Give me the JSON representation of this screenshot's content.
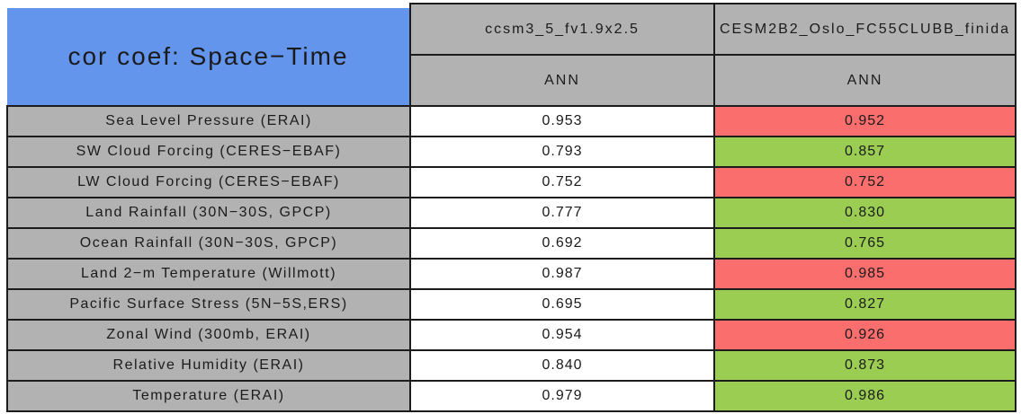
{
  "colors": {
    "header_blue": "#6495ED",
    "header_gray": "#B2B2B2",
    "cell_red": "#FB6E6E",
    "cell_green": "#9ACD52",
    "cell_white": "#FFFFFF",
    "border": "#1C1C1C"
  },
  "chart_data": {
    "type": "table",
    "title": "cor coef: Space−Time",
    "columns": [
      {
        "model": "ccsm3_5_fv1.9x2.5",
        "season": "ANN"
      },
      {
        "model": "CESM2B2_Oslo_FC55CLUBB_finida",
        "season": "ANN"
      }
    ],
    "rows": [
      {
        "label": "Sea Level Pressure (ERAI)",
        "values": [
          "0.953",
          "0.952"
        ],
        "value_colors": [
          "white",
          "red"
        ]
      },
      {
        "label": "SW Cloud Forcing (CERES−EBAF)",
        "values": [
          "0.793",
          "0.857"
        ],
        "value_colors": [
          "white",
          "green"
        ]
      },
      {
        "label": "LW Cloud Forcing (CERES−EBAF)",
        "values": [
          "0.752",
          "0.752"
        ],
        "value_colors": [
          "white",
          "red"
        ]
      },
      {
        "label": "Land Rainfall (30N−30S, GPCP)",
        "values": [
          "0.777",
          "0.830"
        ],
        "value_colors": [
          "white",
          "green"
        ]
      },
      {
        "label": "Ocean Rainfall (30N−30S, GPCP)",
        "values": [
          "0.692",
          "0.765"
        ],
        "value_colors": [
          "white",
          "green"
        ]
      },
      {
        "label": "Land 2−m Temperature (Willmott)",
        "values": [
          "0.987",
          "0.985"
        ],
        "value_colors": [
          "white",
          "red"
        ]
      },
      {
        "label": "Pacific Surface Stress (5N−5S,ERS)",
        "values": [
          "0.695",
          "0.827"
        ],
        "value_colors": [
          "white",
          "green"
        ]
      },
      {
        "label": "Zonal Wind (300mb, ERAI)",
        "values": [
          "0.954",
          "0.926"
        ],
        "value_colors": [
          "white",
          "red"
        ]
      },
      {
        "label": "Relative Humidity (ERAI)",
        "values": [
          "0.840",
          "0.873"
        ],
        "value_colors": [
          "white",
          "green"
        ]
      },
      {
        "label": "Temperature (ERAI)",
        "values": [
          "0.979",
          "0.986"
        ],
        "value_colors": [
          "white",
          "green"
        ]
      }
    ]
  }
}
